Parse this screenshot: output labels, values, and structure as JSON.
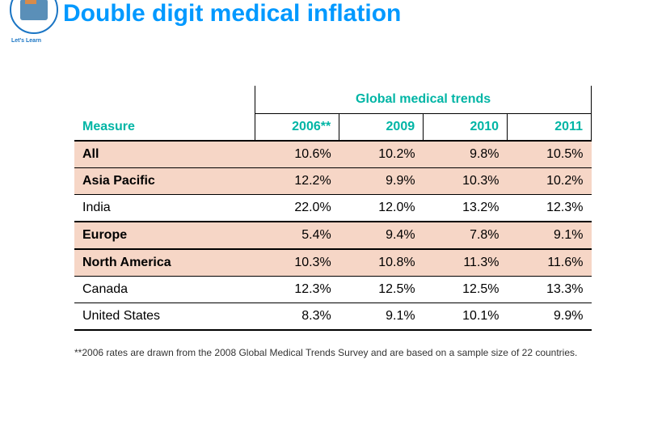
{
  "header": {
    "logo_label": "Let's Learn",
    "title": "Double digit medical inflation",
    "title_color": "#0099ff"
  },
  "table": {
    "measure_label": "Measure",
    "spanner_label": "Global medical trends",
    "header_color": "#00b5a5",
    "shaded_bg": "#f6d6c6",
    "years": [
      "2006**",
      "2009",
      "2010",
      "2011"
    ],
    "rows": [
      {
        "label": "All",
        "values": [
          "10.6%",
          "10.2%",
          "9.8%",
          "10.5%"
        ],
        "shaded": true,
        "thick": false
      },
      {
        "label": "Asia Pacific",
        "values": [
          "12.2%",
          "9.9%",
          "10.3%",
          "10.2%"
        ],
        "shaded": true,
        "thick": false
      },
      {
        "label": "India",
        "values": [
          "22.0%",
          "12.0%",
          "13.2%",
          "12.3%"
        ],
        "shaded": false,
        "thick": true
      },
      {
        "label": "Europe",
        "values": [
          "5.4%",
          "9.4%",
          "7.8%",
          "9.1%"
        ],
        "shaded": true,
        "thick": true
      },
      {
        "label": "North America",
        "values": [
          "10.3%",
          "10.8%",
          "11.3%",
          "11.6%"
        ],
        "shaded": true,
        "thick": false
      },
      {
        "label": "Canada",
        "values": [
          "12.3%",
          "12.5%",
          "12.5%",
          "13.3%"
        ],
        "shaded": false,
        "thick": false
      },
      {
        "label": "United States",
        "values": [
          "8.3%",
          "9.1%",
          "10.1%",
          "9.9%"
        ],
        "shaded": false,
        "thick": true
      }
    ]
  },
  "footnote": "**2006 rates are drawn from the 2008 Global Medical Trends Survey and are based on a sample size of 22 countries."
}
